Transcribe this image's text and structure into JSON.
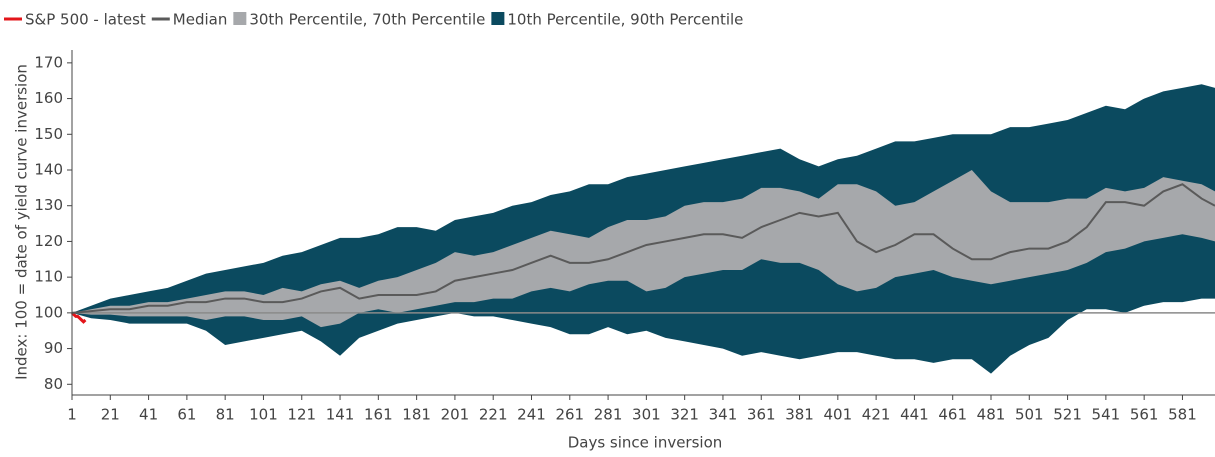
{
  "chart_data": {
    "type": "band",
    "x_label": "Days since inversion",
    "y_label": "Index: 100 = date of yield curve inversion",
    "x": [
      1,
      11,
      21,
      31,
      41,
      51,
      61,
      71,
      81,
      91,
      101,
      111,
      121,
      131,
      141,
      151,
      161,
      171,
      181,
      191,
      201,
      211,
      221,
      231,
      241,
      251,
      261,
      271,
      281,
      291,
      301,
      311,
      321,
      331,
      341,
      351,
      361,
      371,
      381,
      391,
      401,
      411,
      421,
      431,
      441,
      451,
      461,
      471,
      481,
      491,
      501,
      511,
      521,
      531,
      541,
      551,
      561,
      571,
      581,
      591,
      598
    ],
    "xlim": [
      1,
      598
    ],
    "xticks": [
      1,
      21,
      41,
      61,
      81,
      101,
      121,
      141,
      161,
      181,
      201,
      221,
      241,
      261,
      281,
      301,
      321,
      341,
      361,
      381,
      401,
      421,
      441,
      461,
      481,
      501,
      521,
      541,
      561,
      581
    ],
    "ylim": [
      77,
      173.6
    ],
    "yticks": [
      80,
      90,
      100,
      110,
      120,
      130,
      140,
      150,
      160,
      170
    ],
    "hline": 100,
    "series": [
      {
        "name": "S&P 500 - latest",
        "color": "#e3151a",
        "kind": "line",
        "x": [
          1,
          2,
          3,
          4,
          5,
          6,
          7,
          8
        ],
        "values": [
          100,
          99.5,
          99,
          99,
          98.5,
          98,
          97.5,
          98
        ]
      },
      {
        "name": "Median",
        "color": "#5a5a5a",
        "kind": "line",
        "values": [
          100,
          100.5,
          101,
          101,
          102,
          102,
          103,
          103,
          104,
          104,
          103,
          103,
          104,
          106,
          107,
          104,
          105,
          105,
          105,
          106,
          109,
          110,
          111,
          112,
          114,
          116,
          114,
          114,
          115,
          117,
          119,
          120,
          121,
          122,
          122,
          121,
          124,
          126,
          128,
          127,
          128,
          120,
          117,
          119,
          122,
          122,
          118,
          115,
          115,
          117,
          118,
          118,
          120,
          124,
          131,
          131,
          130,
          134,
          136,
          132,
          130
        ]
      },
      {
        "name": "30th Percentile, 70th Percentile",
        "color": "#a6a8ab",
        "kind": "band",
        "lower": [
          100,
          99.5,
          99.5,
          99,
          99,
          99,
          99,
          98,
          99,
          99,
          98,
          98,
          99,
          96,
          97,
          100,
          101,
          100,
          101,
          102,
          103,
          103,
          104,
          104,
          106,
          107,
          106,
          108,
          109,
          109,
          106,
          107,
          110,
          111,
          112,
          112,
          115,
          114,
          114,
          112,
          108,
          106,
          107,
          110,
          111,
          112,
          110,
          109,
          108,
          109,
          110,
          111,
          112,
          114,
          117,
          118,
          120,
          121,
          122,
          121,
          120
        ],
        "upper": [
          100,
          101,
          102,
          102,
          103,
          103,
          104,
          105,
          106,
          106,
          105,
          107,
          106,
          108,
          109,
          107,
          109,
          110,
          112,
          114,
          117,
          116,
          117,
          119,
          121,
          123,
          122,
          121,
          124,
          126,
          126,
          127,
          130,
          131,
          131,
          132,
          135,
          135,
          134,
          132,
          136,
          136,
          134,
          130,
          131,
          134,
          137,
          140,
          134,
          131,
          131,
          131,
          132,
          132,
          135,
          134,
          135,
          138,
          137,
          136,
          134
        ]
      },
      {
        "name": "10th Percentile, 90th Percentile",
        "color": "#0b4a5f",
        "kind": "band",
        "lower": [
          100,
          98.5,
          98,
          97,
          97,
          97,
          97,
          95,
          91,
          92,
          93,
          94,
          95,
          92,
          88,
          93,
          95,
          97,
          98,
          99,
          100,
          99,
          99,
          98,
          97,
          96,
          94,
          94,
          96,
          94,
          95,
          93,
          92,
          91,
          90,
          88,
          89,
          88,
          87,
          88,
          89,
          89,
          88,
          87,
          87,
          86,
          87,
          87,
          83,
          88,
          91,
          93,
          98,
          101,
          101,
          100,
          102,
          103,
          103,
          104,
          104
        ],
        "upper": [
          100,
          102,
          104,
          105,
          106,
          107,
          109,
          111,
          112,
          113,
          114,
          116,
          117,
          119,
          121,
          121,
          122,
          124,
          124,
          123,
          126,
          127,
          128,
          130,
          131,
          133,
          134,
          136,
          136,
          138,
          139,
          140,
          141,
          142,
          143,
          144,
          145,
          146,
          143,
          141,
          143,
          144,
          146,
          148,
          148,
          149,
          150,
          150,
          150,
          152,
          152,
          153,
          154,
          156,
          158,
          157,
          160,
          162,
          163,
          164,
          163
        ]
      }
    ]
  }
}
